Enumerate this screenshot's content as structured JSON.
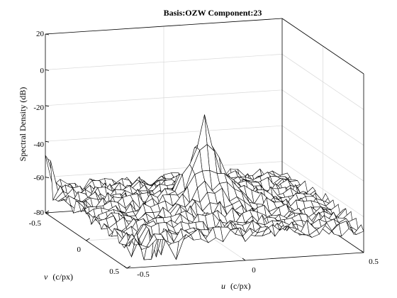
{
  "chart_data": {
    "type": "surface",
    "title": "Basis:OZW Component:23",
    "xlabel_var": "u",
    "xlabel_unit": "(c/px)",
    "ylabel_var": "v",
    "ylabel_unit": "(c/px)",
    "zlabel": "Spectral Density (dB)",
    "xlim": [
      -0.5,
      0.5
    ],
    "ylim": [
      -0.5,
      0.5
    ],
    "zlim": [
      -80,
      20
    ],
    "x_ticks": [
      "-0.5",
      "0",
      "0.5"
    ],
    "y_ticks": [
      "-0.5",
      "0",
      "0.5"
    ],
    "z_ticks": [
      "20",
      "0",
      "-20",
      "-40",
      "-60",
      "-80"
    ],
    "grid": true,
    "peak": {
      "u": 0,
      "v": 0,
      "value": -14
    },
    "floor_level": -62,
    "mesh_color": "#000000",
    "face_color": "#ffffff"
  }
}
